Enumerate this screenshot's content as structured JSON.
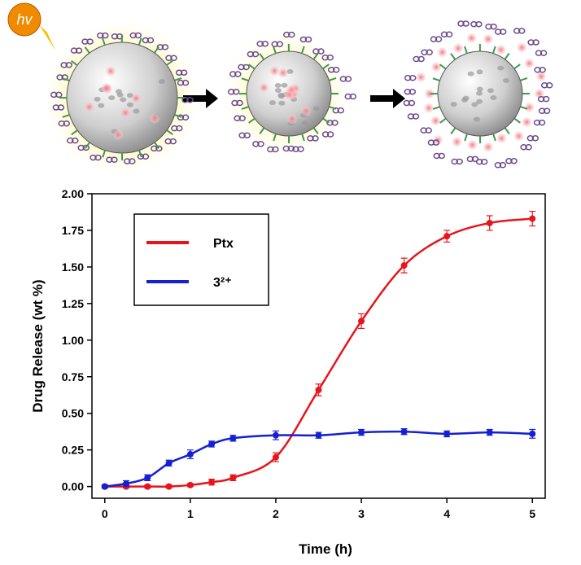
{
  "illustration": {
    "light_label": "hv"
  },
  "chart_data": {
    "type": "line",
    "x_label": "Time (h)",
    "y_label": "Drug Release (wt %)",
    "x": [
      0,
      0.25,
      0.5,
      0.75,
      1,
      1.25,
      1.5,
      2,
      2.5,
      3,
      3.5,
      4,
      4.5,
      5
    ],
    "series": [
      {
        "name": "Ptx",
        "color": "#e8141b",
        "values": [
          0,
          0,
          0,
          0,
          0.01,
          0.03,
          0.06,
          0.2,
          0.66,
          1.13,
          1.51,
          1.71,
          1.8,
          1.83
        ],
        "errors": [
          0.01,
          0.01,
          0.01,
          0.01,
          0.01,
          0.02,
          0.02,
          0.03,
          0.04,
          0.05,
          0.05,
          0.04,
          0.05,
          0.05
        ]
      },
      {
        "name": "3²⁺",
        "color": "#1420d2",
        "values": [
          0,
          0.02,
          0.06,
          0.16,
          0.22,
          0.29,
          0.33,
          0.35,
          0.35,
          0.37,
          0.375,
          0.36,
          0.37,
          0.36
        ],
        "errors": [
          0.01,
          0.02,
          0.02,
          0.02,
          0.03,
          0.02,
          0.02,
          0.03,
          0.02,
          0.02,
          0.02,
          0.02,
          0.02,
          0.03
        ]
      }
    ],
    "xlim": [
      -0.15,
      5.15
    ],
    "ylim": [
      -0.08,
      2.0
    ],
    "xticks": [
      0,
      1,
      2,
      3,
      4,
      5
    ],
    "yticks": [
      {
        "value": 0,
        "label": "0.00"
      },
      {
        "value": 0.25,
        "label": "0.25"
      },
      {
        "value": 0.5,
        "label": "0.50"
      },
      {
        "value": 0.75,
        "label": "0.75"
      },
      {
        "value": 1,
        "label": "1.00"
      },
      {
        "value": 1.25,
        "label": "1.25"
      },
      {
        "value": 1.5,
        "label": "1.50"
      },
      {
        "value": 1.75,
        "label": "1.75"
      },
      {
        "value": 2,
        "label": "2.00"
      }
    ],
    "legend": "upper left"
  }
}
